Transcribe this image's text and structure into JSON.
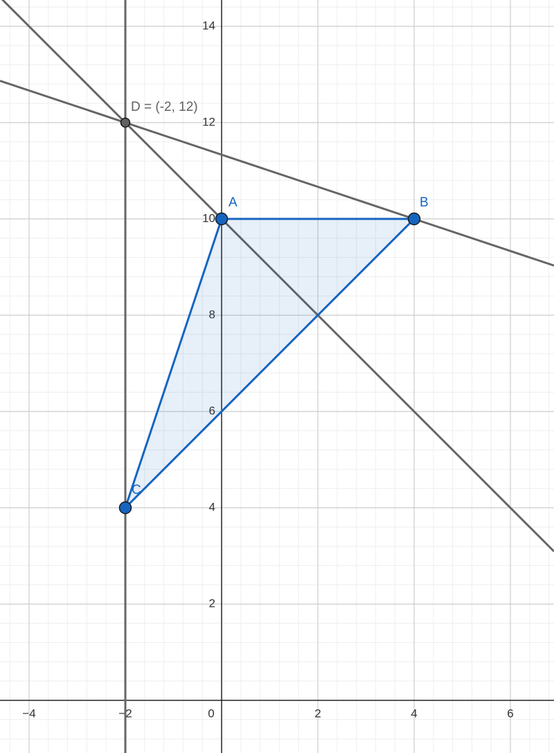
{
  "axes": {
    "xlim": [
      -4.604,
      6.906
    ],
    "ylim": [
      -1.094,
      14.547
    ],
    "xticks": [
      {
        "value": -4,
        "label": "−4"
      },
      {
        "value": -2,
        "label": "−2"
      },
      0,
      2,
      4,
      6
    ],
    "yticks": [
      2,
      4,
      6,
      8,
      10,
      12,
      14
    ],
    "grid": true
  },
  "points": [
    {
      "label": "A",
      "x": 0,
      "y": 10,
      "color": "#1565c0"
    },
    {
      "label": "B",
      "x": 4,
      "y": 10,
      "color": "#1565c0"
    },
    {
      "label": "C",
      "x": -2,
      "y": 4,
      "color": "#1565c0"
    },
    {
      "label": "D = (-2, 12)",
      "x": -2,
      "y": 12,
      "color": "#616161"
    }
  ]
}
